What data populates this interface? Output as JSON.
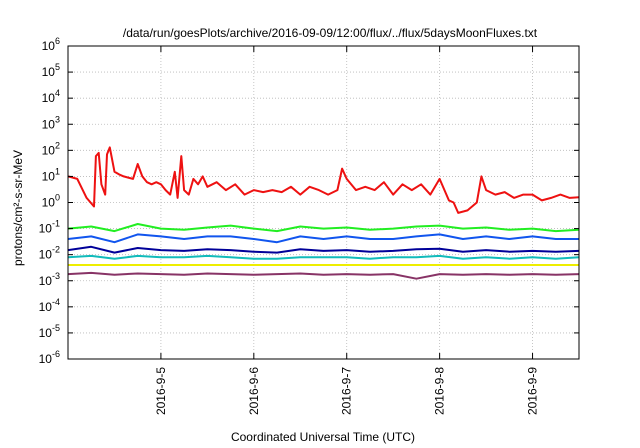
{
  "chart_data": {
    "type": "line",
    "title": "/data/run/goesPlots/archive/2016-09-09/12:00/flux/../flux/5daysMoonFluxes.txt",
    "xlabel": "Coordinated Universal Time (UTC)",
    "ylabel": "protons/cm²-s-sr-MeV",
    "yscale": "log",
    "ylim": [
      1e-06,
      1000000.0
    ],
    "xlim": [
      0,
      5.5
    ],
    "x_origin_note_hidden": true,
    "x_ticks": [
      {
        "pos": 1,
        "label": "2016-9-5"
      },
      {
        "pos": 2,
        "label": "2016-9-6"
      },
      {
        "pos": 3,
        "label": "2016-9-7"
      },
      {
        "pos": 4,
        "label": "2016-9-8"
      },
      {
        "pos": 5,
        "label": "2016-9-9"
      }
    ],
    "y_ticks": [
      {
        "exp": 6,
        "base": "10",
        "sup": "6"
      },
      {
        "exp": 5,
        "base": "10",
        "sup": "5"
      },
      {
        "exp": 4,
        "base": "10",
        "sup": "4"
      },
      {
        "exp": 3,
        "base": "10",
        "sup": "3"
      },
      {
        "exp": 2,
        "base": "10",
        "sup": "2"
      },
      {
        "exp": 1,
        "base": "10",
        "sup": "1"
      },
      {
        "exp": 0,
        "base": "10",
        "sup": "0"
      },
      {
        "exp": -1,
        "base": "10",
        "sup": "-1"
      },
      {
        "exp": -2,
        "base": "10",
        "sup": "-2"
      },
      {
        "exp": -3,
        "base": "10",
        "sup": "-3"
      },
      {
        "exp": -4,
        "base": "10",
        "sup": "-4"
      },
      {
        "exp": -5,
        "base": "10",
        "sup": "-5"
      },
      {
        "exp": -6,
        "base": "10",
        "sup": "-6"
      }
    ],
    "grid": true,
    "series": [
      {
        "color": "#ee1111",
        "x": [
          0.0,
          0.1,
          0.2,
          0.28,
          0.3,
          0.33,
          0.36,
          0.4,
          0.42,
          0.45,
          0.5,
          0.55,
          0.6,
          0.7,
          0.75,
          0.8,
          0.85,
          0.9,
          0.95,
          1.0,
          1.05,
          1.1,
          1.15,
          1.18,
          1.22,
          1.25,
          1.3,
          1.35,
          1.4,
          1.45,
          1.5,
          1.6,
          1.7,
          1.8,
          1.9,
          2.0,
          2.1,
          2.2,
          2.3,
          2.4,
          2.5,
          2.6,
          2.7,
          2.8,
          2.9,
          2.95,
          3.0,
          3.1,
          3.2,
          3.3,
          3.4,
          3.5,
          3.6,
          3.7,
          3.8,
          3.9,
          4.0,
          4.1,
          4.15,
          4.2,
          4.3,
          4.4,
          4.45,
          4.5,
          4.6,
          4.7,
          4.8,
          4.9,
          5.0,
          5.1,
          5.2,
          5.3,
          5.4,
          5.5
        ],
        "y": [
          10,
          8,
          1.5,
          0.7,
          60,
          80,
          5,
          2,
          70,
          130,
          15,
          12,
          10,
          8,
          30,
          10,
          6,
          5,
          6,
          5,
          3,
          2,
          15,
          1.5,
          60,
          3,
          2,
          8,
          5,
          10,
          4,
          6,
          3,
          5,
          2,
          3,
          2.5,
          3,
          2.5,
          4,
          2,
          4,
          3,
          2,
          3,
          20,
          8,
          3,
          4,
          3,
          6,
          2,
          5,
          3,
          5,
          2,
          8,
          1.2,
          1,
          0.4,
          0.5,
          1,
          10,
          3,
          2,
          2.5,
          1.5,
          2,
          2,
          1.2,
          1.5,
          2,
          1.5,
          1.6
        ]
      },
      {
        "color": "#22ee22",
        "x": [
          0.0,
          0.25,
          0.5,
          0.75,
          1.0,
          1.25,
          1.5,
          1.75,
          2.0,
          2.25,
          2.5,
          2.75,
          3.0,
          3.25,
          3.5,
          3.75,
          4.0,
          4.25,
          4.5,
          4.75,
          5.0,
          5.25,
          5.5
        ],
        "y": [
          0.1,
          0.12,
          0.08,
          0.15,
          0.1,
          0.09,
          0.11,
          0.13,
          0.1,
          0.08,
          0.12,
          0.1,
          0.11,
          0.09,
          0.1,
          0.12,
          0.13,
          0.1,
          0.11,
          0.09,
          0.1,
          0.08,
          0.09
        ]
      },
      {
        "color": "#1155ee",
        "x": [
          0.0,
          0.25,
          0.5,
          0.75,
          1.0,
          1.25,
          1.5,
          1.75,
          2.0,
          2.25,
          2.5,
          2.75,
          3.0,
          3.25,
          3.5,
          3.75,
          4.0,
          4.25,
          4.5,
          4.75,
          5.0,
          5.25,
          5.5
        ],
        "y": [
          0.04,
          0.05,
          0.03,
          0.06,
          0.05,
          0.04,
          0.05,
          0.05,
          0.04,
          0.03,
          0.05,
          0.04,
          0.05,
          0.04,
          0.04,
          0.05,
          0.06,
          0.04,
          0.05,
          0.04,
          0.05,
          0.04,
          0.04
        ]
      },
      {
        "color": "#000099",
        "x": [
          0.0,
          0.25,
          0.5,
          0.75,
          1.0,
          1.25,
          1.5,
          1.75,
          2.0,
          2.25,
          2.5,
          2.75,
          3.0,
          3.25,
          3.5,
          3.75,
          4.0,
          4.25,
          4.5,
          4.75,
          5.0,
          5.25,
          5.5
        ],
        "y": [
          0.015,
          0.02,
          0.012,
          0.018,
          0.015,
          0.014,
          0.016,
          0.015,
          0.013,
          0.012,
          0.016,
          0.014,
          0.015,
          0.013,
          0.014,
          0.016,
          0.017,
          0.013,
          0.015,
          0.013,
          0.014,
          0.013,
          0.014
        ]
      },
      {
        "color": "#11bbbb",
        "x": [
          0.0,
          0.25,
          0.5,
          0.75,
          1.0,
          1.25,
          1.5,
          1.75,
          2.0,
          2.25,
          2.5,
          2.75,
          3.0,
          3.25,
          3.5,
          3.75,
          4.0,
          4.25,
          4.5,
          4.75,
          5.0,
          5.25,
          5.5
        ],
        "y": [
          0.008,
          0.009,
          0.007,
          0.009,
          0.008,
          0.008,
          0.009,
          0.008,
          0.007,
          0.007,
          0.008,
          0.008,
          0.008,
          0.007,
          0.008,
          0.008,
          0.009,
          0.007,
          0.008,
          0.007,
          0.008,
          0.007,
          0.008
        ]
      },
      {
        "color": "#eeee00",
        "x": [
          0.0,
          0.5,
          1.0,
          1.5,
          2.0,
          2.5,
          3.0,
          3.5,
          4.0,
          4.5,
          5.0,
          5.5
        ],
        "y": [
          0.004,
          0.004,
          0.004,
          0.004,
          0.004,
          0.004,
          0.004,
          0.004,
          0.004,
          0.004,
          0.004,
          0.004
        ]
      },
      {
        "color": "#883366",
        "x": [
          0.0,
          0.25,
          0.5,
          0.75,
          1.0,
          1.25,
          1.5,
          1.75,
          2.0,
          2.25,
          2.5,
          2.75,
          3.0,
          3.25,
          3.5,
          3.75,
          4.0,
          4.25,
          4.5,
          4.75,
          5.0,
          5.25,
          5.5
        ],
        "y": [
          0.0018,
          0.002,
          0.0017,
          0.0019,
          0.0018,
          0.0017,
          0.0019,
          0.0018,
          0.0017,
          0.0018,
          0.0019,
          0.0017,
          0.0018,
          0.0017,
          0.0018,
          0.0012,
          0.0018,
          0.0017,
          0.0018,
          0.0017,
          0.0018,
          0.0017,
          0.0018
        ]
      }
    ]
  }
}
